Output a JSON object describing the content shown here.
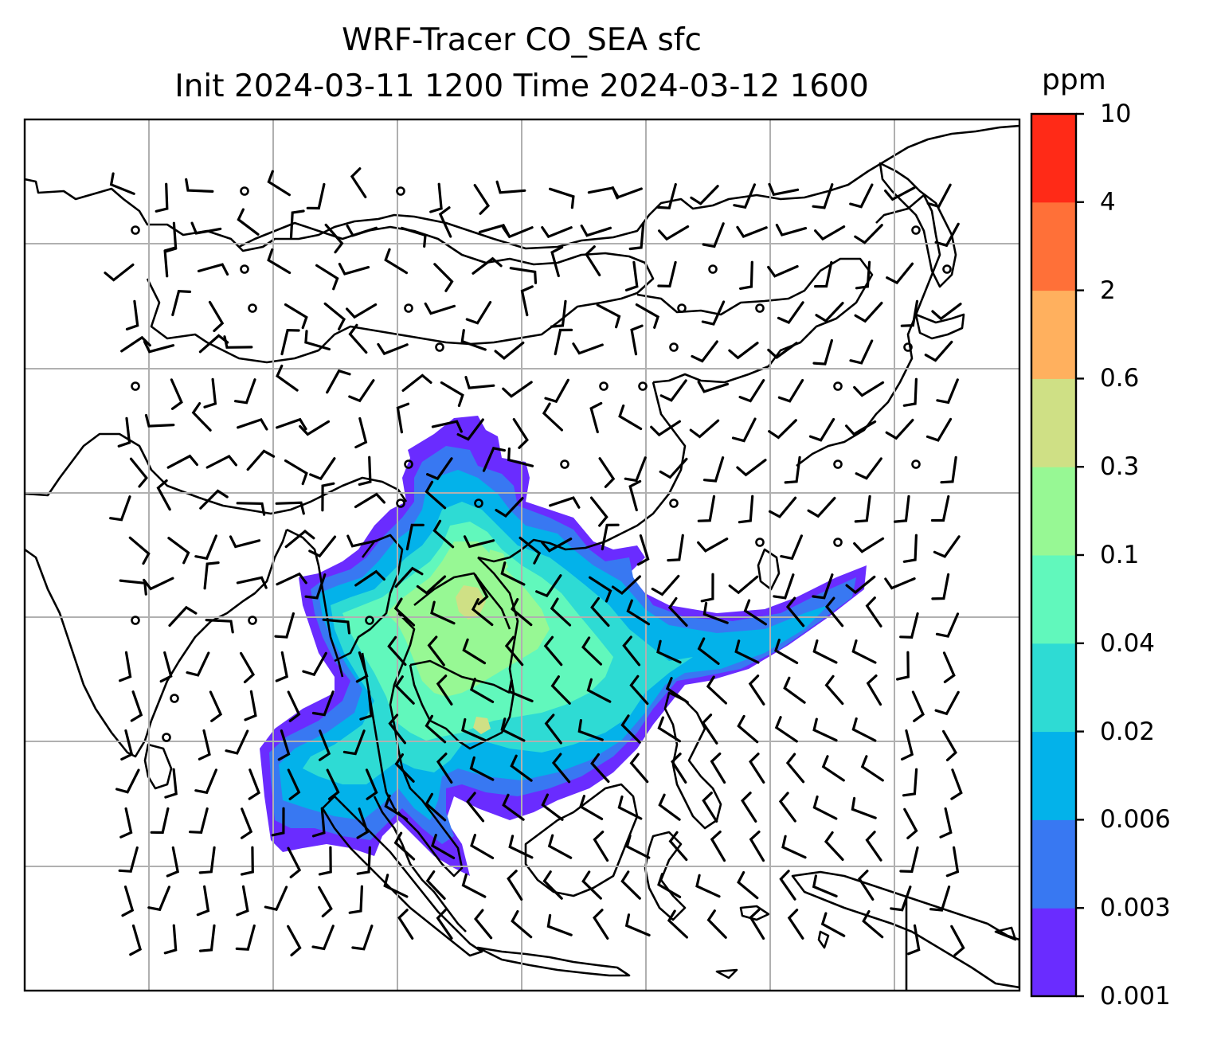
{
  "title": {
    "line1": "WRF-Tracer CO_SEA sfc",
    "line2": "Init 2024-03-11 1200 Time 2024-03-12 1600"
  },
  "colorbar": {
    "unit": "ppm",
    "levels": [
      "0.001",
      "0.003",
      "0.006",
      "0.02",
      "0.04",
      "0.1",
      "0.3",
      "0.6",
      "2",
      "4",
      "10"
    ],
    "colors": [
      "#6a2cff",
      "#3878f2",
      "#03b2ea",
      "#2edbd4",
      "#61f8bc",
      "#97f894",
      "#cfe085",
      "#ffb05e",
      "#ff7038",
      "#ff2a17"
    ]
  },
  "map": {
    "gridlines": true,
    "overlay": "wind barbs",
    "field": "CO_SEA tracer concentration"
  }
}
